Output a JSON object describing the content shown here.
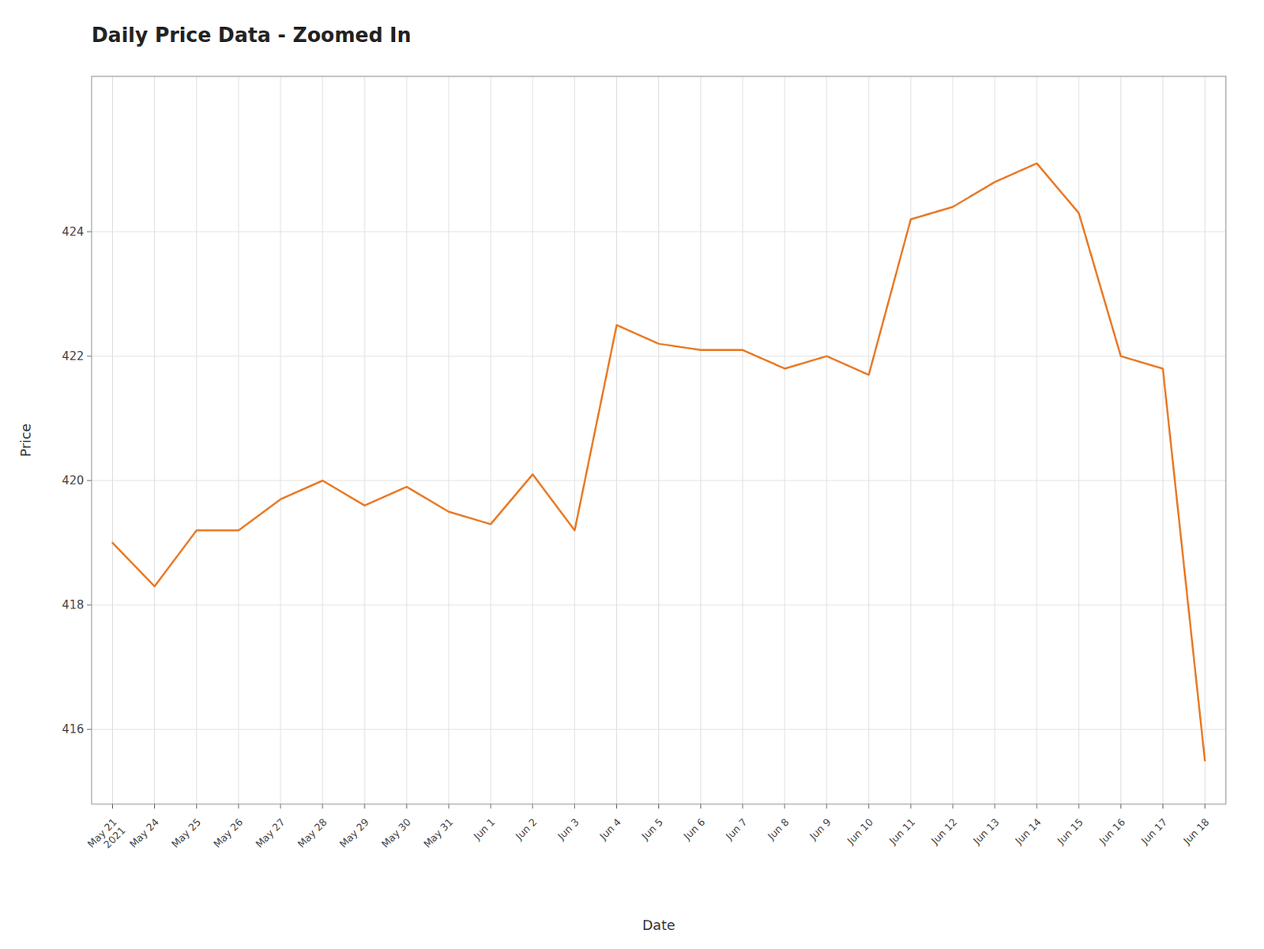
{
  "chart_data": {
    "type": "line",
    "title": "Daily Price Data - Zoomed In",
    "x_label": "Date",
    "y_label": "Price",
    "categories": [
      "May 21\n2021",
      "May 24",
      "May 25",
      "May 26",
      "May 27",
      "May 28",
      "May 29",
      "May 30",
      "May 31",
      "Jun 1",
      "Jun 2",
      "Jun 3",
      "Jun 4",
      "Jun 5",
      "Jun 6",
      "Jun 7",
      "Jun 8",
      "Jun 9",
      "Jun 10",
      "Jun 11",
      "Jun 12",
      "Jun 13",
      "Jun 14",
      "Jun 15",
      "Jun 16",
      "Jun 17",
      "Jun 18"
    ],
    "values": [
      419.0,
      418.3,
      419.2,
      419.2,
      419.7,
      420.0,
      419.6,
      419.9,
      419.5,
      419.3,
      420.1,
      419.2,
      422.5,
      422.2,
      422.1,
      422.1,
      421.8,
      422.0,
      421.7,
      424.2,
      424.4,
      424.8,
      425.1,
      424.3,
      422.0,
      421.8,
      415.5
    ],
    "color": "#E87722",
    "ylim": [
      414.8,
      426.5
    ],
    "yticks": [
      416,
      418,
      420,
      422,
      424
    ],
    "grid": true
  }
}
